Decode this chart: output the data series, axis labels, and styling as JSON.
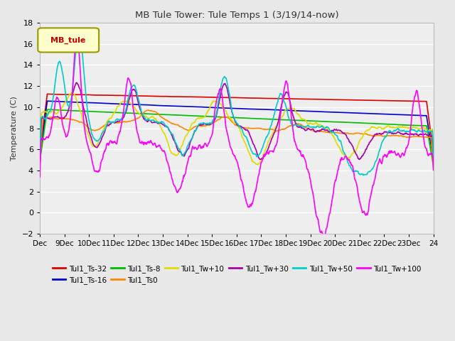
{
  "title": "MB Tule Tower: Tule Temps 1 (3/19/14-now)",
  "ylabel": "Temperature (C)",
  "ylim": [
    -2,
    18
  ],
  "yticks": [
    -2,
    0,
    2,
    4,
    6,
    8,
    10,
    12,
    14,
    16,
    18
  ],
  "xlim": [
    0,
    16
  ],
  "xtick_labels": [
    "Dec",
    "9Dec",
    "10Dec",
    "11Dec",
    "12Dec",
    "13Dec",
    "14Dec",
    "15Dec",
    "16Dec",
    "17Dec",
    "18Dec",
    "19Dec",
    "20Dec",
    "21Dec",
    "22Dec",
    "23Dec",
    "24"
  ],
  "legend_label": "MB_tule",
  "series_order": [
    "Tul1_Ts-32",
    "Tul1_Ts-16",
    "Tul1_Ts-8",
    "Tul1_Ts0",
    "Tul1_Tw+10",
    "Tul1_Tw+30",
    "Tul1_Tw+50",
    "Tul1_Tw+100"
  ],
  "series_colors": {
    "Tul1_Ts-32": "#dd0000",
    "Tul1_Ts-16": "#0000cc",
    "Tul1_Ts-8": "#00bb00",
    "Tul1_Ts0": "#ff8800",
    "Tul1_Tw+10": "#dddd00",
    "Tul1_Tw+30": "#aa00aa",
    "Tul1_Tw+50": "#00cccc",
    "Tul1_Tw+100": "#ff00ff"
  },
  "bg_color": "#e8e8e8",
  "plot_bg": "#eeeeee",
  "grid_color": "#ffffff"
}
